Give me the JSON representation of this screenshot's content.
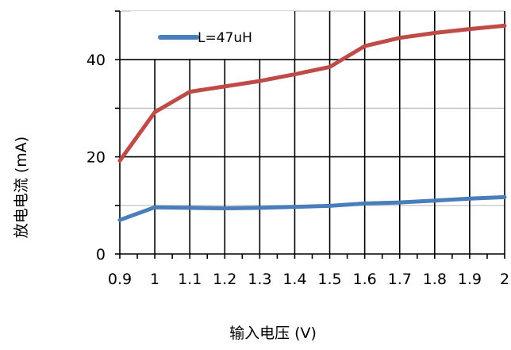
{
  "chart_data": {
    "type": "line",
    "xlabel": "输入电压 (V)",
    "ylabel": "放电电流 (mA)",
    "x": [
      0.9,
      1,
      1.1,
      1.2,
      1.3,
      1.4,
      1.5,
      1.6,
      1.7,
      1.8,
      1.9,
      2
    ],
    "x_tick_labels": [
      "0.9",
      "1",
      "1.1",
      "1.2",
      "1.3",
      "1.4",
      "1.5",
      "1.6",
      "1.7",
      "1.8",
      "1.9",
      "2"
    ],
    "xlim": [
      0.9,
      2
    ],
    "ylim": [
      0,
      50
    ],
    "y_ticks": [
      0,
      20,
      40
    ],
    "legend_position": "top-left",
    "grid": true,
    "series": [
      {
        "name": "L=47uH",
        "color": "#4a7ebb",
        "values": [
          7,
          9.6,
          9.5,
          9.4,
          9.5,
          9.7,
          9.9,
          10.4,
          10.6,
          11,
          11.4,
          11.7
        ]
      },
      {
        "name": "",
        "color": "#be4b48",
        "values": [
          19.2,
          29.2,
          33.4,
          34.5,
          35.6,
          37,
          38.5,
          42.8,
          44.5,
          45.5,
          46.3,
          47
        ]
      }
    ]
  }
}
